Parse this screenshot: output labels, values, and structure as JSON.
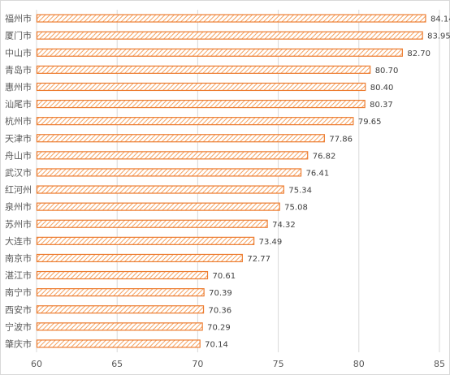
{
  "chart_data": {
    "type": "bar",
    "orientation": "horizontal",
    "categories": [
      "福州市",
      "厦门市",
      "中山市",
      "青岛市",
      "惠州市",
      "汕尾市",
      "杭州市",
      "天津市",
      "舟山市",
      "武汉市",
      "红河州",
      "泉州市",
      "苏州市",
      "大连市",
      "南京市",
      "湛江市",
      "南宁市",
      "西安市",
      "宁波市",
      "肇庆市"
    ],
    "values": [
      84.14,
      83.95,
      82.7,
      80.7,
      80.4,
      80.37,
      79.65,
      77.86,
      76.82,
      76.41,
      75.34,
      75.08,
      74.32,
      73.49,
      72.77,
      70.61,
      70.39,
      70.36,
      70.29,
      70.14
    ],
    "value_labels": [
      "84.14",
      "83.95",
      "82.70",
      "80.70",
      "80.40",
      "80.37",
      "79.65",
      "77.86",
      "76.82",
      "76.41",
      "75.34",
      "75.08",
      "74.32",
      "73.49",
      "72.77",
      "70.61",
      "70.39",
      "70.36",
      "70.29",
      "70.14"
    ],
    "title": "",
    "xlabel": "",
    "ylabel": "",
    "xlim": [
      60,
      85
    ],
    "xticks": [
      60,
      65,
      70,
      75,
      80,
      85
    ],
    "xtick_labels": [
      "60",
      "65",
      "70",
      "75",
      "80",
      "85"
    ],
    "grid": true,
    "legend": "none",
    "colors": {
      "bar_stroke": "#ed7d31",
      "bar_hatch": "#f4a261",
      "bar_fill": "#ffffff",
      "grid": "#d9d9d9",
      "text": "#595959"
    }
  }
}
